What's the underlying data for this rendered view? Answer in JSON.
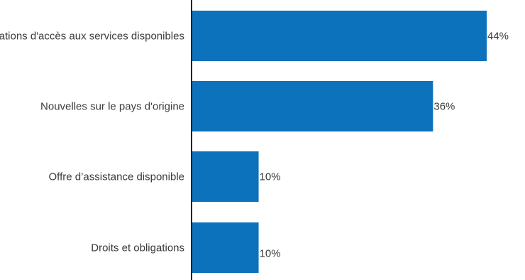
{
  "chart_data": {
    "type": "bar",
    "orientation": "horizontal",
    "categories": [
      "Informations d'accès aux services disponibles",
      "Nouvelles sur le pays d'origine",
      "Offre d’assistance disponible",
      "Droits et obligations"
    ],
    "values": [
      44,
      36,
      10,
      10
    ],
    "value_labels": [
      "44%",
      "36%",
      "10%",
      "10%"
    ],
    "unit": "%",
    "xlim": [
      0,
      50
    ],
    "grid": false,
    "legend": "none",
    "colors": {
      "bar": "#0b72bb",
      "axis": "#222222",
      "text": "#3a3a3a"
    }
  }
}
